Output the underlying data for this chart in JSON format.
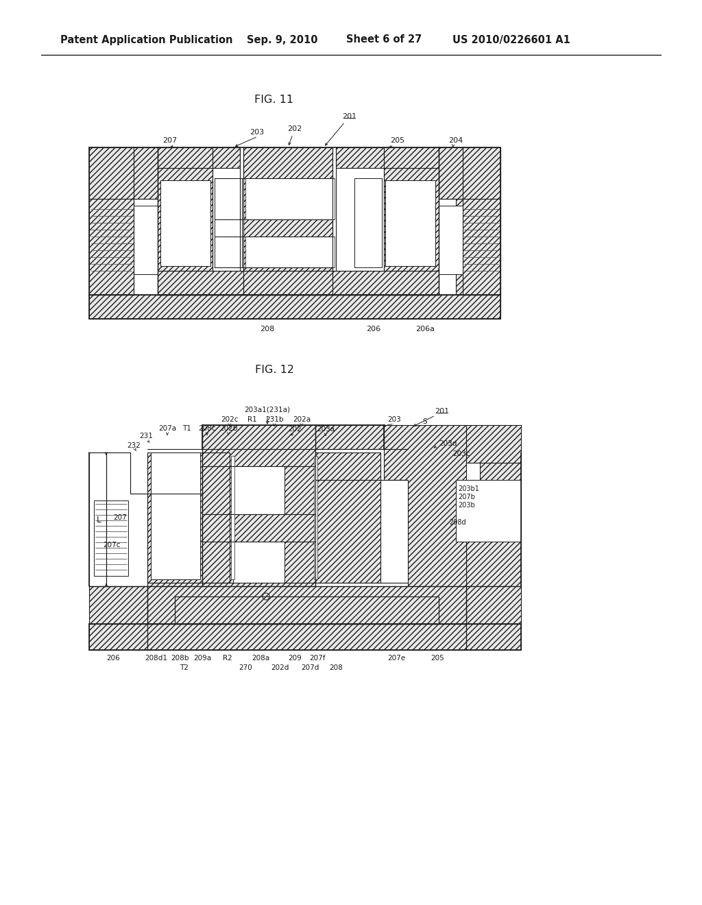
{
  "bg_color": "#ffffff",
  "header_text": "Patent Application Publication",
  "header_date": "Sep. 9, 2010",
  "header_sheet": "Sheet 6 of 27",
  "header_patent": "US 2010/0226601 A1",
  "fig11_title": "FIG. 11",
  "fig12_title": "FIG. 12",
  "line_color": "#1a1a1a",
  "text_color": "#1a1a1a",
  "font_size_header": 10.5,
  "font_size_label": 8.0,
  "font_size_title": 11.5
}
